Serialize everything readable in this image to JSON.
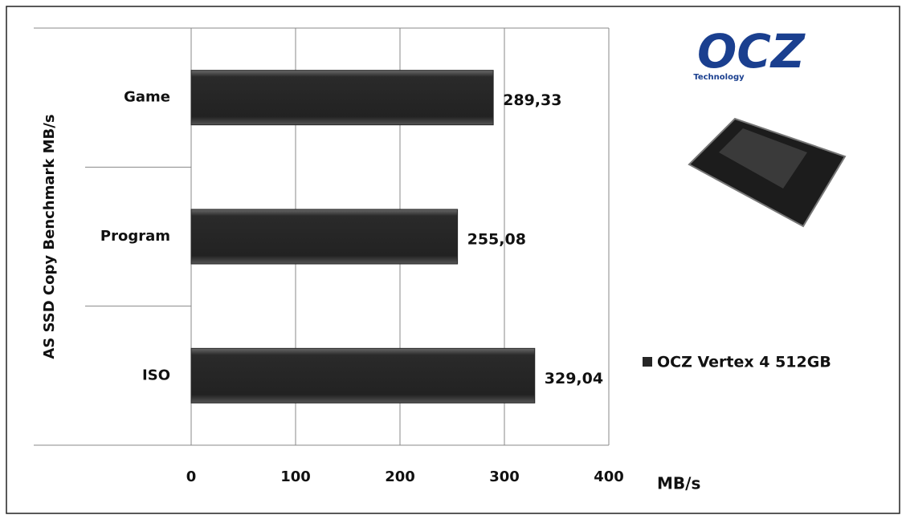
{
  "chart_data": {
    "type": "bar",
    "orientation": "horizontal",
    "y_label": "AS SSD Copy Benchmark MB/s",
    "x_label": "MB/s",
    "categories": [
      "Game",
      "Program",
      "ISO"
    ],
    "series": [
      {
        "name": "OCZ Vertex 4 512GB",
        "color": "#262626",
        "values": [
          289.33,
          255.08,
          329.04
        ],
        "value_labels": [
          "289,33",
          "255,08",
          "329,04"
        ]
      }
    ],
    "xlim": [
      0,
      400
    ],
    "xticks": [
      0,
      100,
      200,
      300,
      400
    ],
    "grid": true,
    "legend": "right",
    "logo": {
      "text": "OCZ",
      "subtitle": "Technology"
    }
  }
}
